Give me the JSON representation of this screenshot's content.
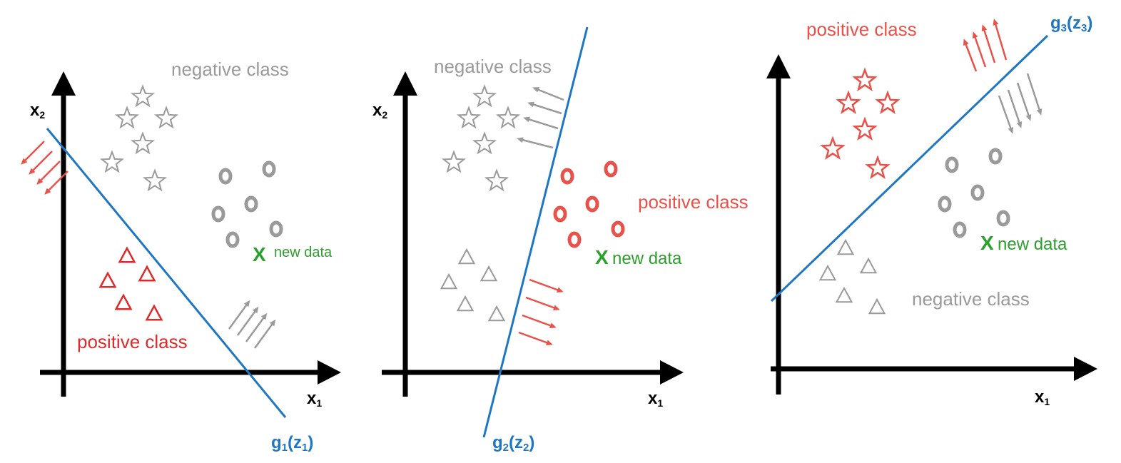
{
  "colors": {
    "boundary": "#1f77c4",
    "positive": "#e8524a",
    "positive_dark": "#dd2a2a",
    "negative": "#9a9a9a",
    "new_data": "#2ca02c",
    "axis": "#000000"
  },
  "panels": [
    {
      "name": "panel-1",
      "x1_label": "x",
      "x1_sub": "1",
      "x2_label": "x",
      "x2_sub": "2",
      "negative_label": "negative class",
      "positive_label": "positive class",
      "new_data_mark": "X",
      "new_data_label": "new data",
      "g_label": "g",
      "g_sub": "1",
      "g_arg": "z",
      "g_arg_sub": "1"
    },
    {
      "name": "panel-2",
      "x1_label": "x",
      "x1_sub": "1",
      "x2_label": "x",
      "x2_sub": "2",
      "negative_label": "negative class",
      "positive_label": "positive class",
      "new_data_mark": "X",
      "new_data_label": "new data",
      "g_label": "g",
      "g_sub": "2",
      "g_arg": "z",
      "g_arg_sub": "2"
    },
    {
      "name": "panel-3",
      "x1_label": "x",
      "x1_sub": "1",
      "negative_label": "negative class",
      "positive_label": "positive class",
      "new_data_mark": "X",
      "new_data_label": "new data",
      "g_label": "g",
      "g_sub": "3",
      "g_arg": "z",
      "g_arg_sub": "3"
    }
  ]
}
